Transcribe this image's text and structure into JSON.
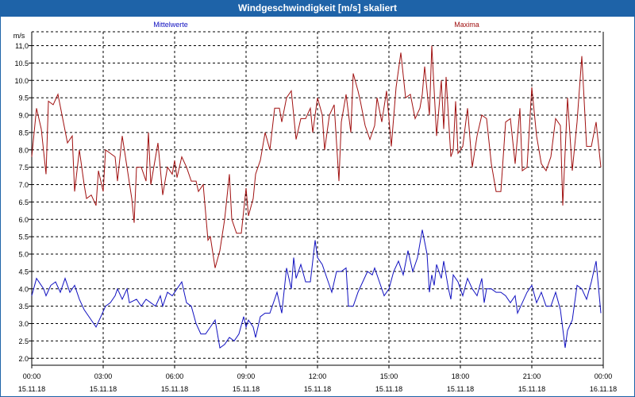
{
  "window": {
    "title": "Windgeschwindigkeit [m/s] skaliert"
  },
  "colors": {
    "mean": "#1010c0",
    "max": "#a01010",
    "grid": "#000000",
    "titlebar": "#1e63a8"
  },
  "chart_data": {
    "type": "line",
    "ylabel": "m/s",
    "ylim": [
      1.8,
      11.4
    ],
    "xlim": [
      0,
      24
    ],
    "y_ticks": [
      "2.0",
      "2.5",
      "3.0",
      "3.5",
      "4.0",
      "4.5",
      "5.0",
      "5.5",
      "6.0",
      "6.5",
      "7.0",
      "7.5",
      "8.0",
      "8.5",
      "9.0",
      "9.5",
      "10.0",
      "10.5",
      "11,0"
    ],
    "x_ticks": [
      {
        "time": "00:00",
        "date": "15.11.18"
      },
      {
        "time": "03:00",
        "date": "15.11.18"
      },
      {
        "time": "06:00",
        "date": "15.11.18"
      },
      {
        "time": "09:00",
        "date": "15.11.18"
      },
      {
        "time": "12:00",
        "date": "15.11.18"
      },
      {
        "time": "15:00",
        "date": "15.11.18"
      },
      {
        "time": "18:00",
        "date": "15.11.18"
      },
      {
        "time": "21:00",
        "date": "15.11.18"
      },
      {
        "time": "00:00",
        "date": "16.11.18"
      }
    ],
    "series": [
      {
        "name": "Mittelwerte",
        "values": [
          [
            0,
            3.8
          ],
          [
            0.2,
            4.3
          ],
          [
            0.5,
            4.0
          ],
          [
            0.6,
            3.8
          ],
          [
            0.8,
            4.1
          ],
          [
            1,
            4.2
          ],
          [
            1.2,
            3.9
          ],
          [
            1.4,
            4.3
          ],
          [
            1.6,
            3.9
          ],
          [
            1.8,
            4.1
          ],
          [
            2,
            3.7
          ],
          [
            2.2,
            3.4
          ],
          [
            2.5,
            3.1
          ],
          [
            2.7,
            2.9
          ],
          [
            2.9,
            3.2
          ],
          [
            3.1,
            3.5
          ],
          [
            3.3,
            3.6
          ],
          [
            3.5,
            3.8
          ],
          [
            3.6,
            4.0
          ],
          [
            3.8,
            3.7
          ],
          [
            4,
            4.0
          ],
          [
            4.1,
            3.6
          ],
          [
            4.4,
            3.7
          ],
          [
            4.6,
            3.5
          ],
          [
            4.8,
            3.7
          ],
          [
            5,
            3.6
          ],
          [
            5.2,
            3.5
          ],
          [
            5.4,
            3.8
          ],
          [
            5.5,
            3.5
          ],
          [
            5.7,
            3.9
          ],
          [
            5.9,
            3.8
          ],
          [
            6.1,
            4.0
          ],
          [
            6.3,
            4.2
          ],
          [
            6.5,
            3.6
          ],
          [
            6.7,
            3.5
          ],
          [
            6.9,
            3.0
          ],
          [
            7.1,
            2.7
          ],
          [
            7.3,
            2.7
          ],
          [
            7.5,
            2.9
          ],
          [
            7.7,
            3.1
          ],
          [
            7.9,
            2.3
          ],
          [
            8.1,
            2.4
          ],
          [
            8.3,
            2.6
          ],
          [
            8.5,
            2.5
          ],
          [
            8.7,
            2.7
          ],
          [
            8.9,
            3.2
          ],
          [
            9.0,
            2.9
          ],
          [
            9.1,
            3.1
          ],
          [
            9.2,
            3.0
          ],
          [
            9.3,
            2.9
          ],
          [
            9.4,
            2.6
          ],
          [
            9.6,
            3.2
          ],
          [
            9.8,
            3.3
          ],
          [
            10,
            3.3
          ],
          [
            10.2,
            3.7
          ],
          [
            10.3,
            3.9
          ],
          [
            10.5,
            3.3
          ],
          [
            10.7,
            4.6
          ],
          [
            10.9,
            4.0
          ],
          [
            11,
            4.9
          ],
          [
            11.1,
            4.3
          ],
          [
            11.3,
            4.7
          ],
          [
            11.5,
            4.2
          ],
          [
            11.7,
            4.2
          ],
          [
            11.8,
            4.8
          ],
          [
            11.9,
            5.4
          ],
          [
            12,
            4.9
          ],
          [
            12.2,
            4.7
          ],
          [
            12.4,
            4.3
          ],
          [
            12.6,
            3.9
          ],
          [
            12.8,
            4.5
          ],
          [
            13,
            4.5
          ],
          [
            13.2,
            4.6
          ],
          [
            13.3,
            3.5
          ],
          [
            13.5,
            3.5
          ],
          [
            13.7,
            3.9
          ],
          [
            13.9,
            4.2
          ],
          [
            14.1,
            4.5
          ],
          [
            14.3,
            4.4
          ],
          [
            14.4,
            4.6
          ],
          [
            14.6,
            4.2
          ],
          [
            14.8,
            3.8
          ],
          [
            15,
            4.0
          ],
          [
            15.2,
            4.5
          ],
          [
            15.4,
            4.8
          ],
          [
            15.6,
            4.4
          ],
          [
            15.8,
            5.1
          ],
          [
            16,
            4.5
          ],
          [
            16.2,
            4.9
          ],
          [
            16.4,
            5.7
          ],
          [
            16.6,
            5.0
          ],
          [
            16.7,
            3.9
          ],
          [
            16.8,
            4.4
          ],
          [
            16.9,
            4.1
          ],
          [
            17,
            4.7
          ],
          [
            17.2,
            4.3
          ],
          [
            17.3,
            4.8
          ],
          [
            17.5,
            4.0
          ],
          [
            17.6,
            3.7
          ],
          [
            17.7,
            4.4
          ],
          [
            17.9,
            4.2
          ],
          [
            18.1,
            3.8
          ],
          [
            18.3,
            4.3
          ],
          [
            18.5,
            4.0
          ],
          [
            18.7,
            3.8
          ],
          [
            18.9,
            4.3
          ],
          [
            19.0,
            3.6
          ],
          [
            19.1,
            4.0
          ],
          [
            19.3,
            4.0
          ],
          [
            19.5,
            3.9
          ],
          [
            19.7,
            3.9
          ],
          [
            19.9,
            3.8
          ],
          [
            20.1,
            3.6
          ],
          [
            20.3,
            3.8
          ],
          [
            20.4,
            3.3
          ],
          [
            20.6,
            3.6
          ],
          [
            20.8,
            3.9
          ],
          [
            21,
            4.1
          ],
          [
            21.2,
            3.6
          ],
          [
            21.4,
            3.9
          ],
          [
            21.6,
            3.5
          ],
          [
            21.8,
            3.5
          ],
          [
            22,
            3.9
          ],
          [
            22.2,
            3.4
          ],
          [
            22.4,
            2.3
          ],
          [
            22.5,
            2.8
          ],
          [
            22.7,
            3.1
          ],
          [
            22.9,
            4.1
          ],
          [
            23.1,
            4.0
          ],
          [
            23.3,
            3.7
          ],
          [
            23.5,
            4.2
          ],
          [
            23.7,
            4.8
          ],
          [
            23.9,
            3.3
          ]
        ]
      },
      {
        "name": "Maxima",
        "values": [
          [
            0,
            7.8
          ],
          [
            0.2,
            9.2
          ],
          [
            0.4,
            8.6
          ],
          [
            0.6,
            7.3
          ],
          [
            0.7,
            9.4
          ],
          [
            0.9,
            9.3
          ],
          [
            1.1,
            9.6
          ],
          [
            1.3,
            8.9
          ],
          [
            1.5,
            8.2
          ],
          [
            1.7,
            8.4
          ],
          [
            1.8,
            6.8
          ],
          [
            2,
            8.0
          ],
          [
            2.2,
            7.0
          ],
          [
            2.3,
            6.6
          ],
          [
            2.5,
            6.7
          ],
          [
            2.7,
            6.4
          ],
          [
            2.8,
            7.4
          ],
          [
            3,
            6.8
          ],
          [
            3.1,
            8.0
          ],
          [
            3.3,
            7.9
          ],
          [
            3.5,
            7.8
          ],
          [
            3.6,
            7.1
          ],
          [
            3.8,
            8.4
          ],
          [
            4,
            7.5
          ],
          [
            4.2,
            6.6
          ],
          [
            4.3,
            5.9
          ],
          [
            4.4,
            7.5
          ],
          [
            4.6,
            7.5
          ],
          [
            4.8,
            7.1
          ],
          [
            4.9,
            8.5
          ],
          [
            5,
            7.0
          ],
          [
            5.1,
            7.4
          ],
          [
            5.3,
            8.2
          ],
          [
            5.5,
            6.7
          ],
          [
            5.7,
            7.5
          ],
          [
            5.9,
            7.3
          ],
          [
            6,
            7.7
          ],
          [
            6.1,
            7.2
          ],
          [
            6.3,
            7.8
          ],
          [
            6.5,
            7.5
          ],
          [
            6.7,
            7.1
          ],
          [
            6.9,
            7.1
          ],
          [
            7,
            6.8
          ],
          [
            7.2,
            7.0
          ],
          [
            7.4,
            5.4
          ],
          [
            7.5,
            5.5
          ],
          [
            7.7,
            4.6
          ],
          [
            7.9,
            5.1
          ],
          [
            8.1,
            6.0
          ],
          [
            8.3,
            7.3
          ],
          [
            8.4,
            6.0
          ],
          [
            8.6,
            5.6
          ],
          [
            8.8,
            5.6
          ],
          [
            9,
            6.9
          ],
          [
            9.1,
            6.1
          ],
          [
            9.3,
            6.6
          ],
          [
            9.4,
            7.3
          ],
          [
            9.6,
            7.7
          ],
          [
            9.8,
            8.5
          ],
          [
            10,
            8.0
          ],
          [
            10.2,
            9.2
          ],
          [
            10.4,
            9.2
          ],
          [
            10.5,
            8.8
          ],
          [
            10.7,
            9.5
          ],
          [
            10.9,
            9.7
          ],
          [
            11.1,
            8.3
          ],
          [
            11.3,
            8.9
          ],
          [
            11.5,
            8.9
          ],
          [
            11.7,
            9.2
          ],
          [
            11.8,
            8.5
          ],
          [
            12,
            9.5
          ],
          [
            12.2,
            9.0
          ],
          [
            12.3,
            8.0
          ],
          [
            12.5,
            9.0
          ],
          [
            12.7,
            9.3
          ],
          [
            12.9,
            7.1
          ],
          [
            13,
            8.8
          ],
          [
            13.2,
            9.6
          ],
          [
            13.4,
            8.5
          ],
          [
            13.5,
            10.2
          ],
          [
            13.7,
            9.7
          ],
          [
            13.8,
            9.4
          ],
          [
            14,
            8.7
          ],
          [
            14.2,
            8.3
          ],
          [
            14.4,
            8.7
          ],
          [
            14.5,
            9.5
          ],
          [
            14.7,
            8.8
          ],
          [
            14.9,
            9.7
          ],
          [
            15.1,
            8.1
          ],
          [
            15.3,
            9.8
          ],
          [
            15.5,
            10.8
          ],
          [
            15.7,
            9.5
          ],
          [
            15.9,
            9.6
          ],
          [
            16.1,
            8.9
          ],
          [
            16.3,
            9.2
          ],
          [
            16.4,
            9.6
          ],
          [
            16.5,
            10.4
          ],
          [
            16.7,
            9.0
          ],
          [
            16.8,
            11.0
          ],
          [
            17,
            8.4
          ],
          [
            17.2,
            10.0
          ],
          [
            17.3,
            8.6
          ],
          [
            17.4,
            10.1
          ],
          [
            17.6,
            7.8
          ],
          [
            17.7,
            8.0
          ],
          [
            17.8,
            9.4
          ],
          [
            17.9,
            7.9
          ],
          [
            18.1,
            8.1
          ],
          [
            18.3,
            9.2
          ],
          [
            18.5,
            7.5
          ],
          [
            18.7,
            8.4
          ],
          [
            18.9,
            9.0
          ],
          [
            19.1,
            8.9
          ],
          [
            19.3,
            7.6
          ],
          [
            19.5,
            6.8
          ],
          [
            19.7,
            6.8
          ],
          [
            19.9,
            8.8
          ],
          [
            20.1,
            8.9
          ],
          [
            20.3,
            7.6
          ],
          [
            20.5,
            9.2
          ],
          [
            20.6,
            7.4
          ],
          [
            20.8,
            7.5
          ],
          [
            21,
            9.8
          ],
          [
            21.2,
            8.4
          ],
          [
            21.4,
            7.6
          ],
          [
            21.6,
            7.4
          ],
          [
            21.8,
            7.8
          ],
          [
            22,
            8.9
          ],
          [
            22.2,
            8.7
          ],
          [
            22.3,
            6.4
          ],
          [
            22.5,
            9.5
          ],
          [
            22.7,
            7.4
          ],
          [
            22.9,
            8.8
          ],
          [
            23.1,
            10.7
          ],
          [
            23.3,
            8.1
          ],
          [
            23.5,
            8.1
          ],
          [
            23.7,
            8.8
          ],
          [
            23.9,
            7.5
          ]
        ]
      }
    ],
    "grid": true
  }
}
